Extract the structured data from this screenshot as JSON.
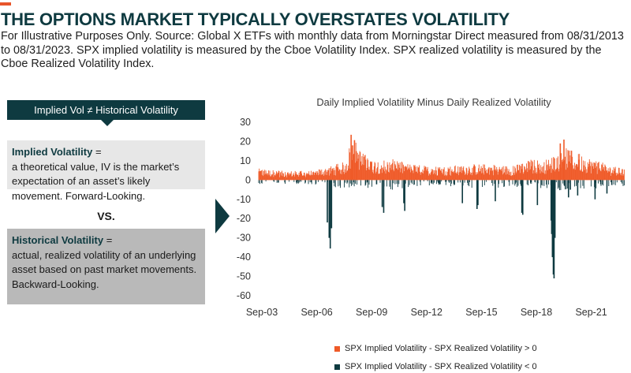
{
  "header": {
    "title": "THE OPTIONS MARKET TYPICALLY OVERSTATES VOLATILITY",
    "subtitle": "For Illustrative Purposes Only. Source: Global X ETFs with monthly data from Morningstar Direct measured from 08/31/2013 to 08/31/2023. SPX implied volatility is measured by the Cboe Volatility Index. SPX realized volatility is measured by the Cboe Realized Volatility Index."
  },
  "panel": {
    "header": "Implied Vol ≠ Historical Volatility",
    "implied_label": "Implied Volatility",
    "implied_suffix": " =",
    "implied_text": "a theoretical value, IV is the market’s expectation of an asset’s likely movement. Forward-Looking.",
    "vs": "VS.",
    "historical_label": "Historical Volatility",
    "historical_suffix": " =",
    "historical_text": "actual, realized volatility of an underlying asset based on past market movements. Backward-Looking."
  },
  "colors": {
    "positive": "#ef5a28",
    "negative": "#0e3a40",
    "dark": "#0e3a40"
  },
  "chart_data": {
    "type": "bar",
    "title": "Daily Implied Volatility Minus Daily Realized Volatility",
    "xlabel": "",
    "ylabel": "",
    "ylim": [
      -60,
      30
    ],
    "yticks": [
      30,
      20,
      10,
      0,
      -10,
      -20,
      -30,
      -40,
      -50,
      -60
    ],
    "xlim": [
      2003.67,
      2023.67
    ],
    "xticks": [
      {
        "label": "Sep-03",
        "value": 2003.67
      },
      {
        "label": "Sep-06",
        "value": 2006.67
      },
      {
        "label": "Sep-09",
        "value": 2009.67
      },
      {
        "label": "Sep-12",
        "value": 2012.67
      },
      {
        "label": "Sep-15",
        "value": 2015.67
      },
      {
        "label": "Sep-18",
        "value": 2018.67
      },
      {
        "label": "Sep-21",
        "value": 2021.67
      }
    ],
    "grid": false,
    "legend_position": "bottom",
    "series": [
      {
        "name": "SPX Implied Volatility - SPX Realized Volatility > 0",
        "color": "#ef5a28"
      },
      {
        "name": "SPX Implied Volatility - SPX Realized Volatility < 0",
        "color": "#0e3a40"
      }
    ],
    "daily_amplitude_anchors": {
      "x": [
        2003.67,
        2005.0,
        2006.5,
        2007.5,
        2008.4,
        2008.8,
        2009.3,
        2010.0,
        2011.0,
        2012.0,
        2013.0,
        2014.0,
        2015.0,
        2016.5,
        2017.5,
        2018.5,
        2019.5,
        2020.0,
        2020.5,
        2021.0,
        2022.0,
        2023.0,
        2023.67
      ],
      "pos": [
        5,
        4,
        4,
        6,
        8,
        20,
        12,
        9,
        9,
        7,
        6,
        6,
        7,
        7,
        6,
        9,
        9,
        12,
        14,
        12,
        9,
        6,
        5
      ],
      "neg": [
        2,
        2,
        2,
        3,
        4,
        5,
        4,
        4,
        5,
        3,
        3,
        3,
        4,
        4,
        3,
        4,
        4,
        5,
        5,
        4,
        4,
        3,
        3
      ]
    },
    "spikes": [
      {
        "x": 2008.72,
        "value": 23.5
      },
      {
        "x": 2008.8,
        "value": 18
      },
      {
        "x": 2009.0,
        "value": 15
      },
      {
        "x": 2020.35,
        "value": 21
      },
      {
        "x": 2020.15,
        "value": 19
      },
      {
        "x": 2007.42,
        "value": -22
      },
      {
        "x": 2007.52,
        "value": -30
      },
      {
        "x": 2007.58,
        "value": -35.5
      },
      {
        "x": 2007.65,
        "value": -25
      },
      {
        "x": 2010.42,
        "value": -14
      },
      {
        "x": 2010.5,
        "value": -17
      },
      {
        "x": 2011.6,
        "value": -12
      },
      {
        "x": 2011.65,
        "value": -16
      },
      {
        "x": 2014.8,
        "value": -12
      },
      {
        "x": 2015.6,
        "value": -15
      },
      {
        "x": 2015.65,
        "value": -13
      },
      {
        "x": 2016.6,
        "value": -11
      },
      {
        "x": 2018.05,
        "value": -17
      },
      {
        "x": 2018.1,
        "value": -18
      },
      {
        "x": 2018.9,
        "value": -13
      },
      {
        "x": 2019.65,
        "value": -21
      },
      {
        "x": 2019.68,
        "value": -28
      },
      {
        "x": 2019.72,
        "value": -40
      },
      {
        "x": 2019.77,
        "value": -49
      },
      {
        "x": 2019.81,
        "value": -51
      },
      {
        "x": 2019.86,
        "value": -30
      },
      {
        "x": 2020.6,
        "value": -9
      },
      {
        "x": 2021.1,
        "value": -8
      },
      {
        "x": 2022.05,
        "value": -10
      },
      {
        "x": 2022.7,
        "value": -7
      }
    ]
  }
}
